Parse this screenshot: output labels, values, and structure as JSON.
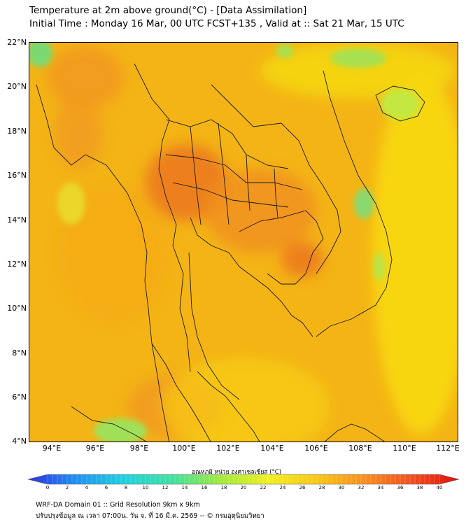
{
  "header": {
    "title_line1": "Temperature at 2m above ground(°C) - [Data Assimilation]",
    "title_line2": "Initial Time : Monday 16 Mar, 00 UTC FCST+135 , Valid at :: Sat 21 Mar, 15 UTC"
  },
  "map": {
    "lat_labels": [
      "22°N",
      "20°N",
      "18°N",
      "16°N",
      "14°N",
      "12°N",
      "10°N",
      "8°N",
      "6°N",
      "4°N"
    ],
    "lon_labels": [
      "94°E",
      "96°E",
      "98°E",
      "100°E",
      "102°E",
      "104°E",
      "106°E",
      "108°E",
      "110°E",
      "112°E"
    ],
    "base_color": "#f4b416",
    "border_color": "#1a1a1a"
  },
  "colorbar": {
    "title": "อุณหภูมิ หน่วย องศาเซลเซียส (°C)",
    "ticks": [
      "0",
      "2",
      "4",
      "6",
      "8",
      "10",
      "12",
      "14",
      "16",
      "18",
      "20",
      "22",
      "24",
      "26",
      "28",
      "30",
      "32",
      "34",
      "36",
      "38",
      "40"
    ],
    "colors": [
      "#3030e0",
      "#2090f0",
      "#20d0e0",
      "#40e0a0",
      "#a0e840",
      "#f0f020",
      "#f8c818",
      "#f89020",
      "#f05020",
      "#e01010"
    ]
  },
  "footer": {
    "line1": "WRF-DA Domain 01 :: Grid Resolution 9km x 9km",
    "line2": "ปรับปรุงข้อมูล ณ เวลา 07:00น. วัน จ. ที่ 16 มี.ค. 2569 -- © กรมอุตุนิยมวิทยา"
  }
}
